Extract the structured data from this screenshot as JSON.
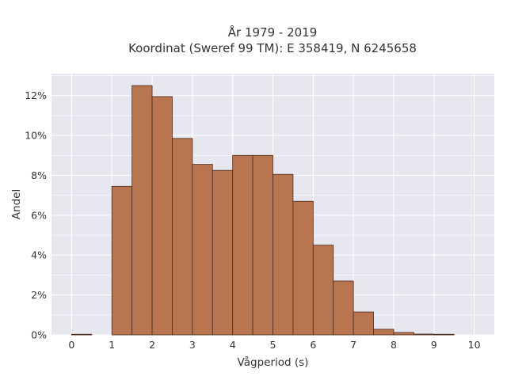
{
  "chart_data": {
    "type": "bar",
    "title_line1": "År 1979 - 2019",
    "title_line2": "Koordinat (Sweref 99 TM): E 358419, N 6245658",
    "xlabel": "Vågperiod (s)",
    "ylabel": "Andel",
    "xlim": [
      -0.5,
      10.5
    ],
    "ylim": [
      0,
      0.131
    ],
    "x_ticks": [
      0,
      1,
      2,
      3,
      4,
      5,
      6,
      7,
      8,
      9,
      10
    ],
    "x_tick_labels": [
      "0",
      "1",
      "2",
      "3",
      "4",
      "5",
      "6",
      "7",
      "8",
      "9",
      "10"
    ],
    "y_ticks": [
      0,
      0.02,
      0.04,
      0.06,
      0.08,
      0.1,
      0.12
    ],
    "y_tick_labels": [
      "0%",
      "2%",
      "4%",
      "6%",
      "8%",
      "10%",
      "12%"
    ],
    "bin_width": 0.5,
    "bin_starts": [
      0,
      0.5,
      1,
      1.5,
      2,
      2.5,
      3,
      3.5,
      4,
      4.5,
      5,
      5.5,
      6,
      6.5,
      7,
      7.5,
      8,
      8.5,
      9
    ],
    "values": [
      0.0003,
      0,
      0.0745,
      0.125,
      0.1195,
      0.0985,
      0.0855,
      0.0825,
      0.09,
      0.09,
      0.0805,
      0.067,
      0.045,
      0.027,
      0.0115,
      0.0028,
      0.0012,
      0.0004,
      0.0003
    ],
    "grid": true,
    "legend": "none",
    "colors": {
      "bar_fill": "#b87550",
      "bar_stroke": "#4a2c1c",
      "plot_bg": "#e7e7f0",
      "grid": "#ffffff"
    }
  }
}
